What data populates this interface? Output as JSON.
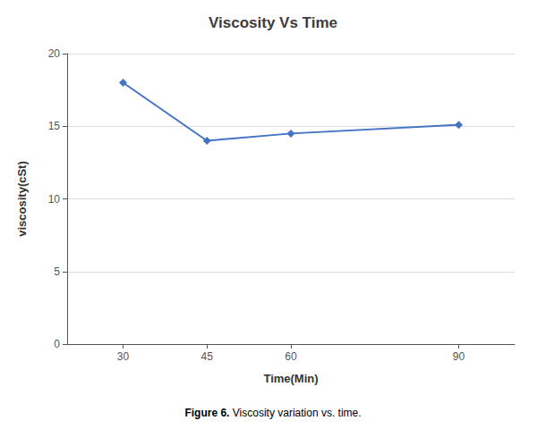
{
  "chart_data": {
    "type": "line",
    "title": "Viscosity Vs Time",
    "xlabel": "Time(Min)",
    "ylabel": "viscosity(cSt)",
    "x": [
      30,
      45,
      60,
      90
    ],
    "values": [
      18.0,
      14.0,
      14.5,
      15.1
    ],
    "color": "#4472C4",
    "marker": "diamond",
    "xlim": [
      20,
      100
    ],
    "ylim": [
      0,
      20
    ],
    "xticks": [
      30,
      45,
      60,
      90
    ],
    "yticks": [
      0,
      5,
      10,
      15,
      20
    ],
    "grid": true,
    "annotations": [
      "Figure 6.",
      "Viscosity variation vs. time."
    ]
  }
}
